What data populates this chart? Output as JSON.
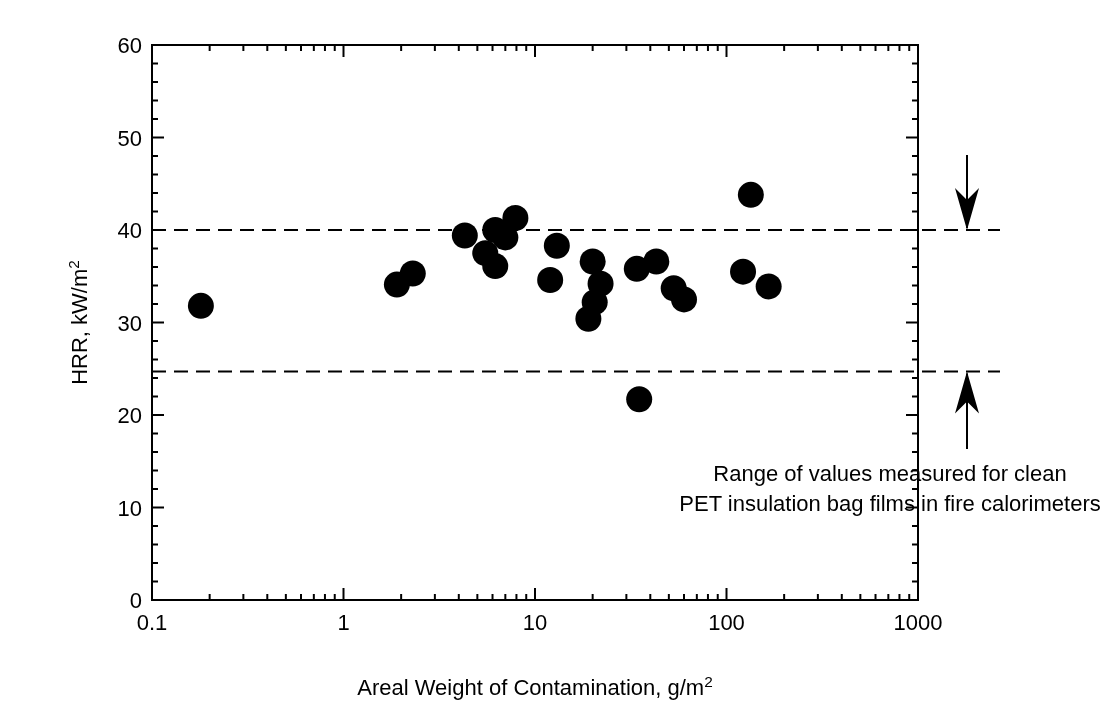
{
  "chart_data": {
    "type": "scatter",
    "xlabel": "Areal Weight of Contamination, g/m$^{2}$",
    "ylabel": "HRR, kW/m$^{2}$",
    "log": "x",
    "xlim": [
      0.1,
      1000
    ],
    "ylim": [
      0,
      60
    ],
    "grid": false,
    "marker": "circle",
    "xticks": [
      0.1,
      {
        "value": 0.2,
        "label": null
      },
      {
        "value": 0.3,
        "label": null
      },
      {
        "value": 0.4,
        "label": null
      },
      {
        "value": 0.5,
        "label": null
      },
      {
        "value": 0.6,
        "label": null
      },
      {
        "value": 0.7,
        "label": null
      },
      {
        "value": 0.8,
        "label": null
      },
      {
        "value": 0.9,
        "label": null
      },
      1,
      {
        "value": 2,
        "label": null
      },
      {
        "value": 3,
        "label": null
      },
      {
        "value": 4,
        "label": null
      },
      {
        "value": 5,
        "label": null
      },
      {
        "value": 6,
        "label": null
      },
      {
        "value": 7,
        "label": null
      },
      {
        "value": 8,
        "label": null
      },
      {
        "value": 9,
        "label": null
      },
      10,
      {
        "value": 20,
        "label": null
      },
      {
        "value": 30,
        "label": null
      },
      {
        "value": 40,
        "label": null
      },
      {
        "value": 50,
        "label": null
      },
      {
        "value": 60,
        "label": null
      },
      {
        "value": 70,
        "label": null
      },
      {
        "value": 80,
        "label": null
      },
      {
        "value": 90,
        "label": null
      },
      100,
      {
        "value": 200,
        "label": null
      },
      {
        "value": 300,
        "label": null
      },
      {
        "value": 400,
        "label": null
      },
      {
        "value": 500,
        "label": null
      },
      {
        "value": 600,
        "label": null
      },
      {
        "value": 700,
        "label": null
      },
      {
        "value": 800,
        "label": null
      },
      {
        "value": 900,
        "label": null
      },
      1000
    ],
    "yticks": [
      0,
      {
        "value": 2,
        "label": null
      },
      {
        "value": 4,
        "label": null
      },
      {
        "value": 6,
        "label": null
      },
      {
        "value": 8,
        "label": null
      },
      10,
      {
        "value": 12,
        "label": null
      },
      {
        "value": 14,
        "label": null
      },
      {
        "value": 16,
        "label": null
      },
      {
        "value": 18,
        "label": null
      },
      20,
      {
        "value": 22,
        "label": null
      },
      {
        "value": 24,
        "label": null
      },
      {
        "value": 26,
        "label": null
      },
      {
        "value": 28,
        "label": null
      },
      30,
      {
        "value": 32,
        "label": null
      },
      {
        "value": 34,
        "label": null
      },
      {
        "value": 36,
        "label": null
      },
      {
        "value": 38,
        "label": null
      },
      40,
      {
        "value": 42,
        "label": null
      },
      {
        "value": 44,
        "label": null
      },
      {
        "value": 46,
        "label": null
      },
      {
        "value": 48,
        "label": null
      },
      50,
      {
        "value": 52,
        "label": null
      },
      {
        "value": 54,
        "label": null
      },
      {
        "value": 56,
        "label": null
      },
      {
        "value": 58,
        "label": null
      },
      60
    ],
    "x": [
      0.18,
      1.9,
      2.3,
      4.3,
      5.5,
      6.2,
      6.2,
      7.0,
      7.9,
      12,
      13,
      20,
      19,
      20.5,
      22,
      34,
      43,
      53,
      60,
      35,
      134,
      122,
      166
    ],
    "series": [
      {
        "color": "#000000",
        "values": [
          31.8,
          34.1,
          35.3,
          39.4,
          37.5,
          36.1,
          40.0,
          39.2,
          41.3,
          34.6,
          38.3,
          36.6,
          30.4,
          32.2,
          34.2,
          35.8,
          36.6,
          33.7,
          32.5,
          21.7,
          43.8,
          35.5,
          33.9
        ]
      }
    ],
    "ref_lines": [
      {
        "axis": "y",
        "value": 40,
        "color": "#000000",
        "line_style": "dashed"
      },
      {
        "axis": "y",
        "value": 24.7,
        "color": "#000000",
        "line_style": "dashed"
      }
    ],
    "annotations": [
      "Range of values measured for clean",
      "PET insulation bag films in fire calorimeters"
    ]
  }
}
